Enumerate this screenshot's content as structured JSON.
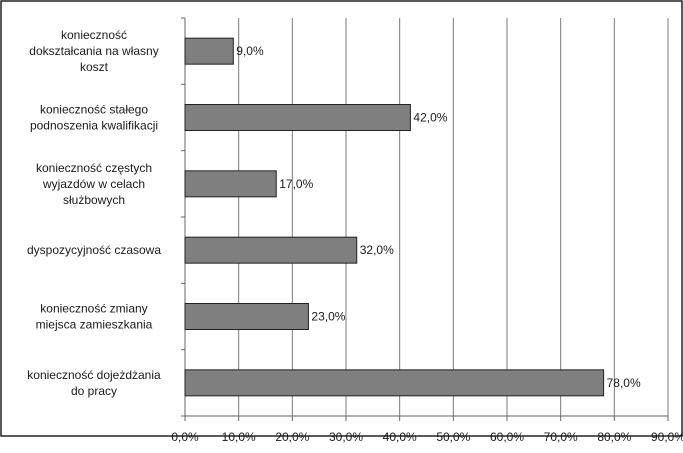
{
  "chart_data": {
    "type": "bar",
    "orientation": "horizontal",
    "categories": [
      [
        "konieczność",
        "dokształcania na własny",
        "koszt"
      ],
      [
        "konieczność stałego",
        "podnoszenia kwalifikacji"
      ],
      [
        "konieczność częstych",
        "wyjazdów w celach",
        "służbowych"
      ],
      [
        "dyspozycyjność czasowa"
      ],
      [
        "konieczność zmiany",
        "miejsca zamieszkania"
      ],
      [
        "konieczność dojeżdżania",
        "do pracy"
      ]
    ],
    "values": [
      9.0,
      42.0,
      17.0,
      32.0,
      23.0,
      78.0
    ],
    "data_labels": [
      "9,0%",
      "42,0%",
      "17,0%",
      "32,0%",
      "23,0%",
      "78,0%"
    ],
    "x_ticks": [
      0,
      10,
      20,
      30,
      40,
      50,
      60,
      70,
      80,
      90
    ],
    "x_tick_labels": [
      "0,0%",
      "10,0%",
      "20,0%",
      "30,0%",
      "40,0%",
      "50,0%",
      "60,0%",
      "70,0%",
      "80,0%",
      "90,0%"
    ],
    "xlim": [
      0,
      90
    ],
    "grid": "vertical",
    "legend": "none",
    "title": "",
    "xlabel": "",
    "ylabel": "",
    "colors": {
      "bar_fill": "#7f7f7f",
      "bar_stroke": "#222222",
      "grid": "#7a7a7a",
      "axis": "#666666",
      "frame": "#000000"
    }
  }
}
